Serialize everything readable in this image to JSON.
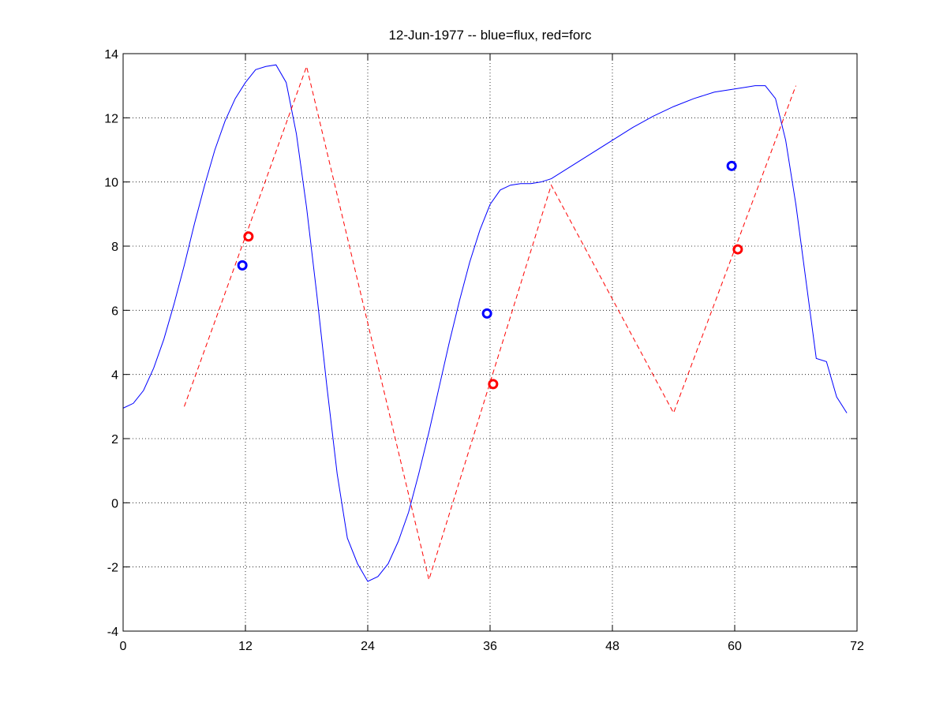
{
  "chart_data": {
    "type": "line",
    "title": "12-Jun-1977 -- blue=flux, red=forc",
    "xlabel": "",
    "ylabel": "",
    "xlim": [
      0,
      72
    ],
    "ylim": [
      -4,
      14
    ],
    "xticks": [
      0,
      12,
      24,
      36,
      48,
      60,
      72
    ],
    "yticks": [
      -4,
      -2,
      0,
      2,
      4,
      6,
      8,
      10,
      12,
      14
    ],
    "grid": true,
    "legend": "none",
    "series": [
      {
        "style": "solid",
        "color": "#0000ff",
        "x": [
          0,
          1,
          2,
          3,
          4,
          5,
          6,
          7,
          8,
          9,
          10,
          11,
          12,
          13,
          14,
          15,
          16,
          17,
          18,
          19,
          20,
          21,
          22,
          23,
          24,
          25,
          26,
          27,
          28,
          29,
          30,
          31,
          32,
          33,
          34,
          35,
          36,
          37,
          38,
          39,
          40,
          41,
          42,
          44,
          46,
          48,
          50,
          52,
          54,
          56,
          58,
          60,
          61,
          62,
          63,
          64,
          65,
          66,
          67,
          68,
          69,
          70,
          71
        ],
        "y": [
          2.95,
          3.1,
          3.5,
          4.2,
          5.1,
          6.2,
          7.4,
          8.7,
          9.9,
          11.0,
          11.9,
          12.6,
          13.1,
          13.5,
          13.6,
          13.65,
          13.1,
          11.5,
          9.2,
          6.5,
          3.6,
          0.9,
          -1.1,
          -1.9,
          -2.45,
          -2.3,
          -1.9,
          -1.2,
          -0.3,
          0.9,
          2.2,
          3.6,
          5.0,
          6.3,
          7.5,
          8.5,
          9.3,
          9.75,
          9.9,
          9.95,
          9.95,
          10.0,
          10.1,
          10.5,
          10.9,
          11.3,
          11.7,
          12.05,
          12.35,
          12.6,
          12.8,
          12.9,
          12.95,
          13.0,
          13.0,
          12.6,
          11.3,
          9.3,
          6.9,
          4.5,
          4.4,
          3.3,
          2.8
        ]
      },
      {
        "style": "dashed",
        "color": "#ff0000",
        "x": [
          6,
          18,
          30,
          42,
          54,
          66
        ],
        "y": [
          3.0,
          13.6,
          -2.4,
          9.9,
          2.8,
          13.0
        ]
      },
      {
        "style": "markers",
        "color": "#0000ff",
        "x": [
          11.7,
          35.7,
          59.7
        ],
        "y": [
          7.4,
          5.9,
          10.5
        ]
      },
      {
        "style": "markers",
        "color": "#ff0000",
        "x": [
          12.3,
          36.3,
          60.3
        ],
        "y": [
          8.3,
          3.7,
          7.9
        ]
      }
    ]
  }
}
